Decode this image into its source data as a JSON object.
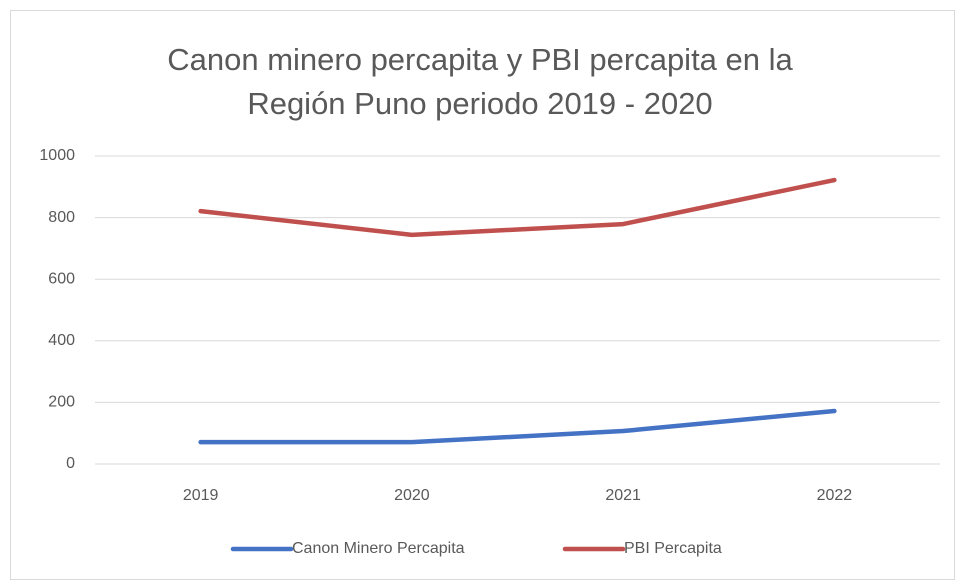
{
  "chart_data": {
    "type": "line",
    "title": "Canon minero percapita y PBI percapita en la Región Puno periodo 2019 - 2020",
    "categories": [
      "2019",
      "2020",
      "2021",
      "2022"
    ],
    "series": [
      {
        "name": "Canon Minero Percapita",
        "color": "#4472c4",
        "values": [
          71,
          71,
          107,
          172
        ]
      },
      {
        "name": "PBI Percapita",
        "color": "#c0504d",
        "values": [
          821,
          744,
          779,
          922
        ]
      }
    ],
    "ylim": [
      0,
      1000
    ],
    "yticks": [
      0,
      200,
      400,
      600,
      800,
      1000
    ],
    "grid": true,
    "legend": "bottom"
  }
}
